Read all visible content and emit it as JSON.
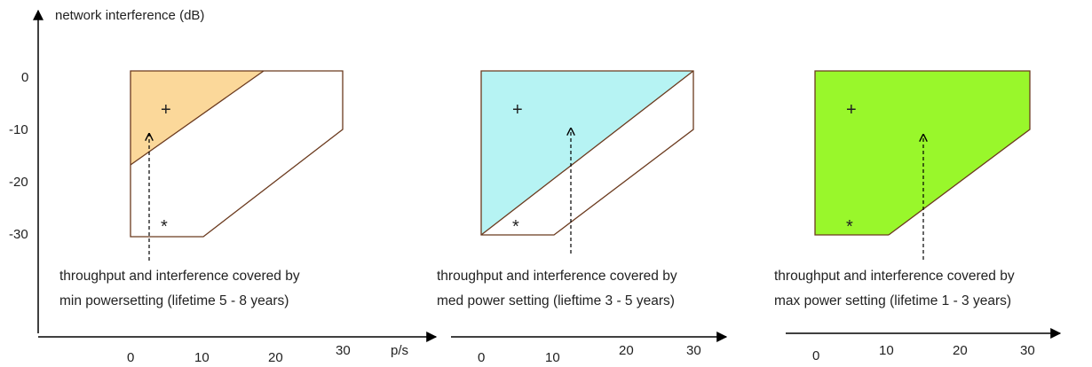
{
  "y_axis_label": "network interference (dB)",
  "x_unit_label": "p/s",
  "y_ticks": [
    "0",
    "-10",
    "-20",
    "-30"
  ],
  "x_ticks": [
    "0",
    "10",
    "20",
    "30"
  ],
  "marker_plus": "+",
  "marker_star": "*",
  "panels": [
    {
      "id": "min",
      "fill": "#fbd89a",
      "caption_line1": "throughput and interference covered by",
      "caption_line2": "min powersetting (lifetime 5 - 8 years)"
    },
    {
      "id": "med",
      "fill": "#b6f3f3",
      "caption_line1": "throughput and interference covered by",
      "caption_line2": "med power setting (lieftime 3 - 5 years)"
    },
    {
      "id": "max",
      "fill": "#99f72b",
      "caption_line1": "throughput and interference covered by",
      "caption_line2": "max power setting (lifetime 1 - 3 years)"
    }
  ],
  "colors": {
    "outline": "#6b3a1e",
    "axis": "#000000"
  }
}
